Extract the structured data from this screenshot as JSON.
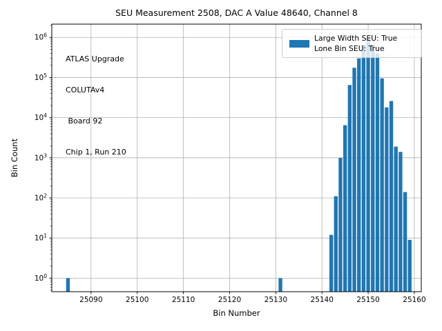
{
  "window": {
    "kind": "matplotlib-figure"
  },
  "title": "SEU Measurement 2508, DAC A Value 48640, Channel 8",
  "annotation": {
    "line1": "ATLAS Upgrade",
    "line2": "COLUTAv4",
    "line3": " Board 92",
    "line4": "Chip 1, Run 210"
  },
  "legend": {
    "line1": "Large Width SEU: True",
    "line2": "Lone Bin SEU: True",
    "swatch_color": "#1f77b4",
    "position": "upper right"
  },
  "colors": {
    "bar": "#1f77b4",
    "grid": "#b0b0b0",
    "spine": "#000000",
    "background": "#ffffff"
  },
  "chart_data": {
    "type": "bar",
    "title": "SEU Measurement 2508, DAC A Value 48640, Channel 8",
    "xlabel": "Bin Number",
    "ylabel": "Bin Count",
    "yscale": "log",
    "grid": true,
    "legend_position": "upper right",
    "bar_color": "#1f77b4",
    "bar_width": 0.8,
    "x": [
      25085,
      25131,
      25142,
      25143,
      25144,
      25145,
      25146,
      25147,
      25148,
      25149,
      25150,
      25151,
      25152,
      25153,
      25154,
      25155,
      25156,
      25157,
      25158,
      25159
    ],
    "values": [
      1,
      1,
      12,
      110,
      1000,
      6500,
      65000,
      175000,
      300000,
      650000,
      950000,
      650000,
      400000,
      95000,
      18000,
      26000,
      1900,
      1400,
      140,
      9
    ],
    "x_ticks": [
      25090,
      25100,
      25110,
      25120,
      25130,
      25140,
      25150,
      25160
    ],
    "y_tick_exponents": [
      0,
      1,
      2,
      3,
      4,
      5,
      6
    ],
    "xlim": [
      25081.5,
      25161.5
    ],
    "ylim": [
      0.46,
      2140000
    ]
  }
}
